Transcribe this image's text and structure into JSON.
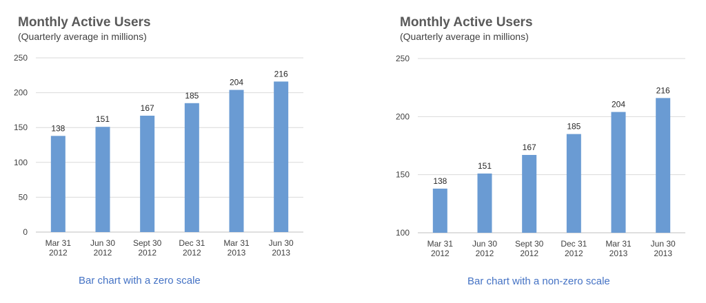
{
  "chart_data": [
    {
      "type": "bar",
      "title": "Monthly Active Users",
      "subtitle": "(Quarterly average in millions)",
      "caption": "Bar chart with a zero scale",
      "categories": [
        [
          "Mar 31",
          "2012"
        ],
        [
          "Jun 30",
          "2012"
        ],
        [
          "Sept 30",
          "2012"
        ],
        [
          "Dec 31",
          "2012"
        ],
        [
          "Mar 31",
          "2013"
        ],
        [
          "Jun 30",
          "2013"
        ]
      ],
      "values": [
        138,
        151,
        167,
        185,
        204,
        216
      ],
      "ylim": [
        0,
        250
      ],
      "yticks": [
        0,
        50,
        100,
        150,
        200,
        250
      ],
      "grid": true,
      "bar_color": "#6a9bd3",
      "grid_color": "#d9d9d9"
    },
    {
      "type": "bar",
      "title": "Monthly Active Users",
      "subtitle": "(Quarterly average in millions)",
      "caption": "Bar chart with a non-zero scale",
      "categories": [
        [
          "Mar 31",
          "2012"
        ],
        [
          "Jun 30",
          "2012"
        ],
        [
          "Sept 30",
          "2012"
        ],
        [
          "Dec 31",
          "2012"
        ],
        [
          "Mar 31",
          "2013"
        ],
        [
          "Jun 30",
          "2013"
        ]
      ],
      "values": [
        138,
        151,
        167,
        185,
        204,
        216
      ],
      "ylim": [
        100,
        250
      ],
      "yticks": [
        100,
        150,
        200,
        250
      ],
      "grid": true,
      "bar_color": "#6a9bd3",
      "grid_color": "#d9d9d9"
    }
  ]
}
